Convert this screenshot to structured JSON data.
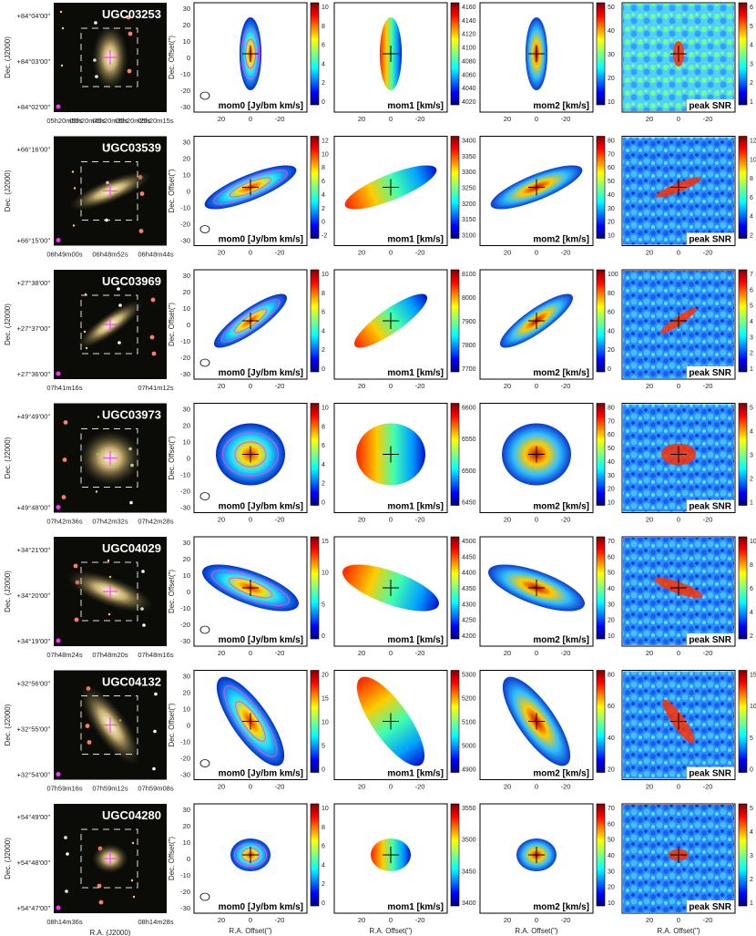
{
  "figure": {
    "axes": {
      "dec_axis_label": "Dec. (J2000)",
      "ra_axis_label": "R.A. (J2000)",
      "offset_y_label": "Dec. Offset(\")",
      "offset_x_label": "R.A. Offset(\")",
      "offset_y_ticks": [
        "30",
        "20",
        "10",
        "0",
        "-10",
        "-20",
        "-30"
      ],
      "offset_x_ticks": [
        "20",
        "0",
        "-20"
      ]
    },
    "panel_labels": {
      "mom0": "mom0 [Jy/bm km/s]",
      "mom1": "mom1 [km/s]",
      "mom2": "mom2 [km/s]",
      "snr": "peak SNR"
    },
    "colors": {
      "contour": "#ff40ff",
      "cross": "#000000",
      "frame": "#000000"
    }
  },
  "chart_data": [
    {
      "type": "heatmap",
      "galaxy": "UGC03253",
      "dec_ticks": [
        "+84°04′00″",
        "+84°03′00″",
        "+84°02′00″"
      ],
      "ra_ticks": [
        "05h20m55s",
        "05h20m45s",
        "05h20m35s",
        "05h20m25s",
        "05h20m15s"
      ],
      "mom0_cbar": [
        "10",
        "8",
        "6",
        "4",
        "2",
        "0"
      ],
      "mom1_cbar": [
        "4160",
        "4140",
        "4120",
        "4100",
        "4080",
        "4060",
        "4040",
        "4020"
      ],
      "mom2_cbar": [
        "50",
        "40",
        "30",
        "20",
        "10"
      ],
      "snr_cbar": [
        "6",
        "5",
        "4",
        "3",
        "2",
        "1"
      ],
      "xlim": [
        30,
        -30
      ],
      "ylim": [
        -30,
        35
      ]
    },
    {
      "type": "heatmap",
      "galaxy": "UGC03539",
      "dec_ticks": [
        "+66°16′00″",
        "+66°15′00″"
      ],
      "ra_ticks": [
        "06h49m00s",
        "06h48m52s",
        "06h48m44s"
      ],
      "mom0_cbar": [
        "12",
        "10",
        "8",
        "6",
        "4",
        "2",
        "0",
        "-2"
      ],
      "mom1_cbar": [
        "3400",
        "3350",
        "3300",
        "3250",
        "3200",
        "3150",
        "3100"
      ],
      "mom2_cbar": [
        "80",
        "70",
        "60",
        "50",
        "40",
        "30",
        "20",
        "10"
      ],
      "snr_cbar": [
        "12",
        "10",
        "8",
        "6",
        "4",
        "2"
      ],
      "xlim": [
        30,
        -30
      ],
      "ylim": [
        -30,
        35
      ]
    },
    {
      "type": "heatmap",
      "galaxy": "UGC03969",
      "dec_ticks": [
        "+27°38′00″",
        "+27°37′00″",
        "+27°36′00″"
      ],
      "ra_ticks": [
        "07h41m16s",
        "07h41m12s"
      ],
      "mom0_cbar": [
        "10",
        "8",
        "6",
        "4",
        "2",
        "0"
      ],
      "mom1_cbar": [
        "8100",
        "8000",
        "7900",
        "7800",
        "7700"
      ],
      "mom2_cbar": [
        "100",
        "80",
        "60",
        "40",
        "20",
        "0"
      ],
      "snr_cbar": [
        "7",
        "6",
        "5",
        "4",
        "3",
        "2",
        "1"
      ],
      "xlim": [
        30,
        -30
      ],
      "ylim": [
        -30,
        35
      ]
    },
    {
      "type": "heatmap",
      "galaxy": "UGC03973",
      "dec_ticks": [
        "+49°49′00″",
        "+49°48′00″"
      ],
      "ra_ticks": [
        "07h42m36s",
        "07h42m32s",
        "07h42m28s"
      ],
      "mom0_cbar": [
        "10",
        "8",
        "6",
        "4",
        "2",
        "0"
      ],
      "mom1_cbar": [
        "6600",
        "6550",
        "6500",
        "6450"
      ],
      "mom2_cbar": [
        "80",
        "70",
        "60",
        "50",
        "40",
        "30",
        "20",
        "10"
      ],
      "snr_cbar": [
        "5",
        "4",
        "3",
        "2",
        "1"
      ],
      "xlim": [
        30,
        -30
      ],
      "ylim": [
        -30,
        35
      ]
    },
    {
      "type": "heatmap",
      "galaxy": "UGC04029",
      "dec_ticks": [
        "+34°21′00″",
        "+34°20′00″",
        "+34°19′00″"
      ],
      "ra_ticks": [
        "07h48m24s",
        "07h48m20s",
        "07h48m16s"
      ],
      "mom0_cbar": [
        "15",
        "10",
        "5",
        "0"
      ],
      "mom1_cbar": [
        "4500",
        "4450",
        "4400",
        "4350",
        "4300",
        "4250",
        "4200"
      ],
      "mom2_cbar": [
        "70",
        "60",
        "50",
        "40",
        "30",
        "20",
        "10"
      ],
      "snr_cbar": [
        "10",
        "8",
        "6",
        "4",
        "2"
      ],
      "xlim": [
        30,
        -30
      ],
      "ylim": [
        -30,
        35
      ]
    },
    {
      "type": "heatmap",
      "galaxy": "UGC04132",
      "dec_ticks": [
        "+32°56′00″",
        "+32°55′00″",
        "+32°54′00″"
      ],
      "ra_ticks": [
        "07h59m16s",
        "07h59m12s",
        "07h59m08s"
      ],
      "mom0_cbar": [
        "20",
        "15",
        "10",
        "5",
        "0"
      ],
      "mom1_cbar": [
        "5300",
        "5200",
        "5100",
        "5000",
        "4900"
      ],
      "mom2_cbar": [
        "80",
        "60",
        "40",
        "20"
      ],
      "snr_cbar": [
        "15",
        "10",
        "5",
        "0"
      ],
      "xlim": [
        30,
        -30
      ],
      "ylim": [
        -30,
        35
      ]
    },
    {
      "type": "heatmap",
      "galaxy": "UGC04280",
      "dec_ticks": [
        "+54°49′00″",
        "+54°48′00″",
        "+54°47′00″"
      ],
      "ra_ticks": [
        "08h14m36s",
        "08h14m28s"
      ],
      "mom0_cbar": [
        "10",
        "8",
        "6",
        "4",
        "2",
        "0"
      ],
      "mom1_cbar": [
        "3550",
        "3500",
        "3450",
        "3400"
      ],
      "mom2_cbar": [
        "70",
        "60",
        "50",
        "40",
        "30",
        "20",
        "10"
      ],
      "snr_cbar": [
        "5",
        "4",
        "3",
        "2",
        "1"
      ],
      "xlim": [
        30,
        -30
      ],
      "ylim": [
        -30,
        35
      ]
    }
  ]
}
